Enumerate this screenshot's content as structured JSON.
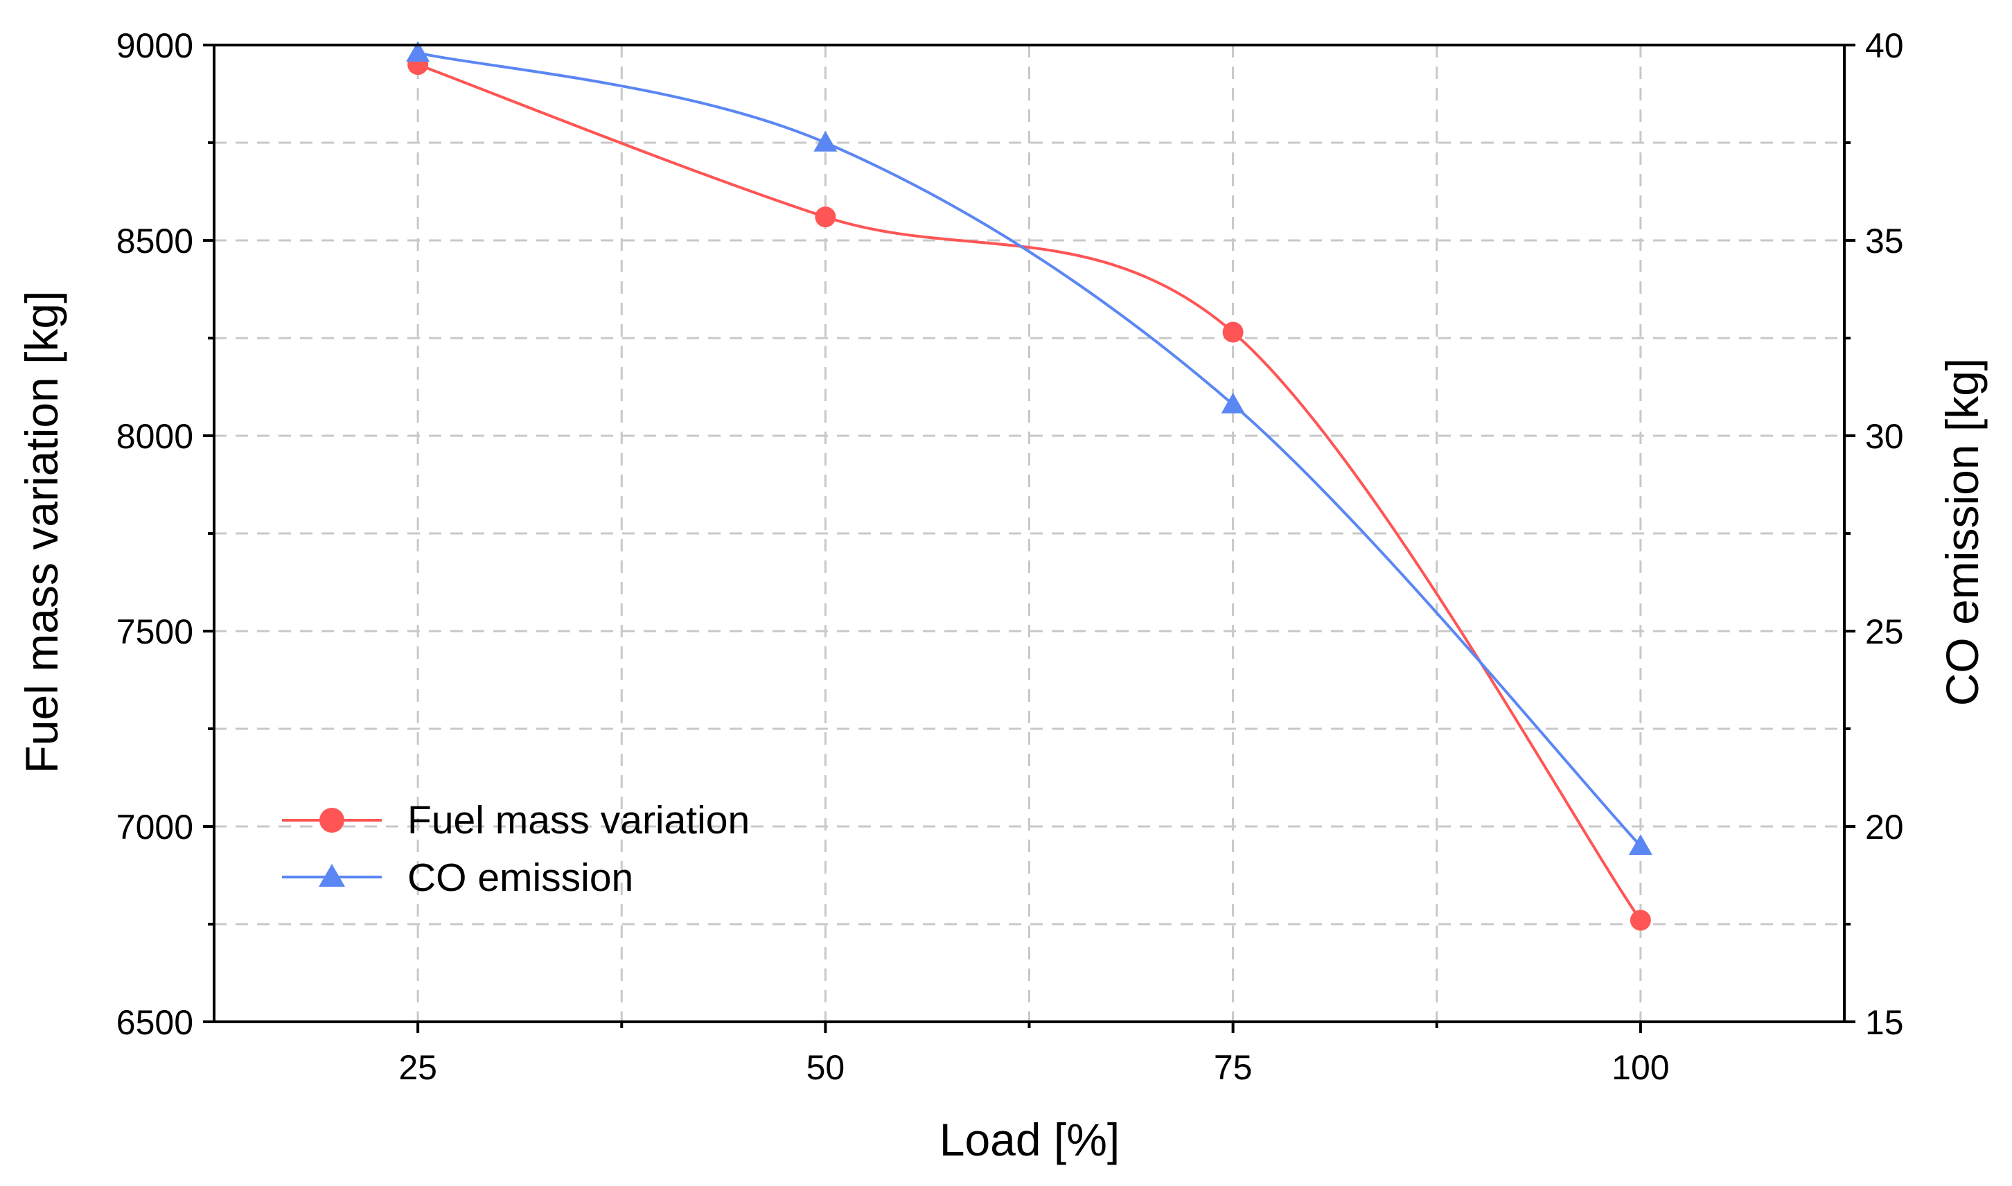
{
  "chart_data": {
    "type": "line",
    "title": "",
    "xlabel": "Load [%]",
    "ylabel_left": "Fuel mass variation [kg]",
    "ylabel_right": "CO emission [kg]",
    "x": [
      25,
      50,
      75,
      100
    ],
    "xlim": [
      12.5,
      112.5
    ],
    "x_ticks": [
      25,
      50,
      75,
      100
    ],
    "x_tick_labels": [
      "25",
      "50",
      "75",
      "100"
    ],
    "x_minor_ticks": [
      37.5,
      62.5,
      87.5
    ],
    "ylim_left": [
      6500,
      9000
    ],
    "y_left_ticks": [
      6500,
      7000,
      7500,
      8000,
      8500,
      9000
    ],
    "y_left_tick_labels": [
      "6500",
      "7000",
      "7500",
      "8000",
      "8500",
      "9000"
    ],
    "y_left_minor_ticks": [
      6750,
      7250,
      7750,
      8250,
      8750
    ],
    "ylim_right": [
      15,
      40
    ],
    "y_right_ticks": [
      15,
      20,
      25,
      30,
      35,
      40
    ],
    "y_right_tick_labels": [
      "15",
      "20",
      "25",
      "30",
      "35",
      "40"
    ],
    "y_right_minor_ticks": [
      17.5,
      22.5,
      27.5,
      32.5,
      37.5
    ],
    "grid": true,
    "legend_position": "lower-left",
    "series": [
      {
        "name": "Fuel mass variation",
        "axis": "left",
        "marker": "circle",
        "color": "#ff5555",
        "values": [
          8950,
          8560,
          8265,
          6760
        ]
      },
      {
        "name": "CO emission",
        "axis": "right",
        "marker": "triangle",
        "color": "#5b87f4",
        "values": [
          39.8,
          37.5,
          30.8,
          19.5
        ]
      }
    ]
  }
}
